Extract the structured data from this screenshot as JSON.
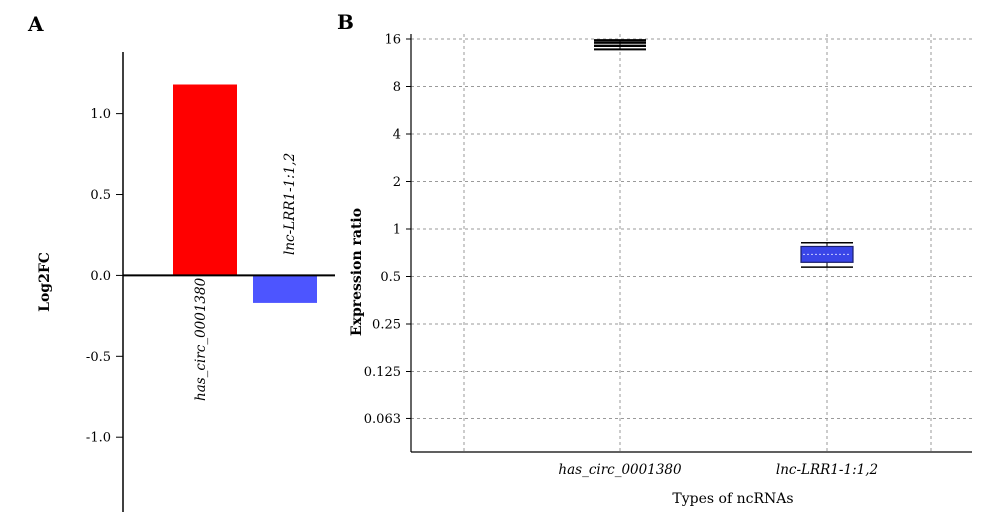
{
  "chart_data": [
    {
      "type": "bar",
      "panel": "A",
      "ylabel": "Log2FC",
      "xlabel": "",
      "ylim": [
        -1.45,
        1.35
      ],
      "yticks": [
        "1.0",
        "0.5",
        "0.0",
        "-0.5",
        "-1.0"
      ],
      "categories": [
        "has_circ_0001380",
        "lnc-LRR1-1:1,2"
      ],
      "values": [
        1.18,
        -0.17
      ],
      "colors": [
        "#ff0000",
        "#4d55ff"
      ]
    },
    {
      "type": "box",
      "panel": "B",
      "ylabel": "Expression ratio",
      "xlabel": "Types of ncRNAs",
      "yscale": "log2",
      "ylim": [
        0.04,
        17
      ],
      "yticks": [
        "16",
        "8",
        "4",
        "2",
        "1",
        "0.5",
        "0.25",
        "0.125",
        "0.063"
      ],
      "grid": true,
      "categories": [
        "has_circ_0001380",
        "lnc-LRR1-1:1,2"
      ],
      "boxes": [
        {
          "whisker_low": 13.75,
          "q1": 14.44,
          "median": 14.89,
          "q3": 15.26,
          "whisker_high": 15.75,
          "color": "#000000"
        },
        {
          "whisker_low": 0.573,
          "q1": 0.615,
          "median": 0.69,
          "q3": 0.775,
          "whisker_high": 0.818,
          "color": "#3a46e8"
        }
      ]
    }
  ]
}
